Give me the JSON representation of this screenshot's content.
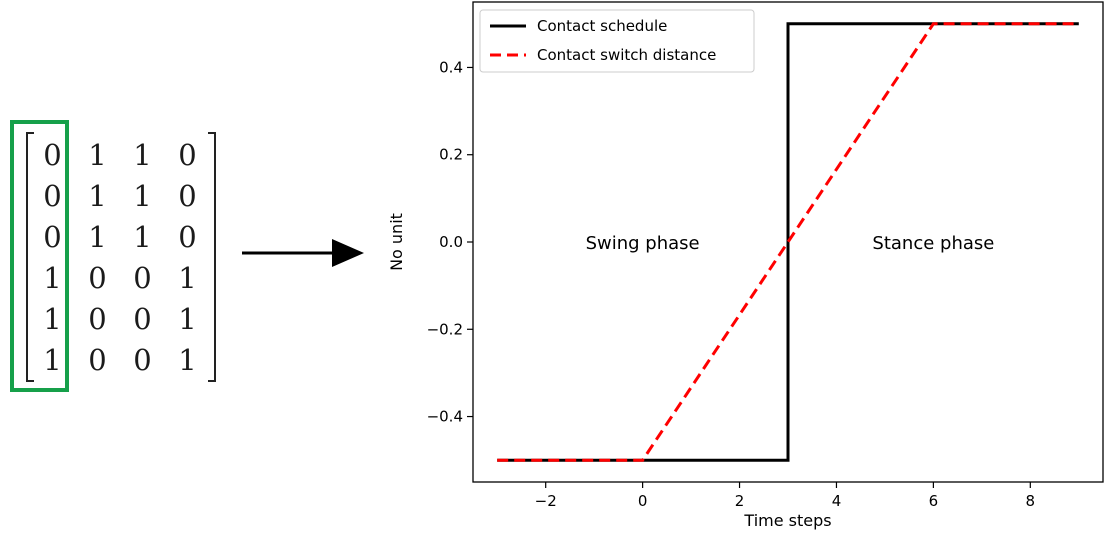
{
  "matrix": {
    "rows": [
      [
        "0",
        "1",
        "1",
        "0"
      ],
      [
        "0",
        "1",
        "1",
        "0"
      ],
      [
        "0",
        "1",
        "1",
        "0"
      ],
      [
        "1",
        "0",
        "0",
        "1"
      ],
      [
        "1",
        "0",
        "0",
        "1"
      ],
      [
        "1",
        "0",
        "0",
        "1"
      ]
    ],
    "highlighted_column": 0,
    "highlight_color": "#16a04a"
  },
  "chart_data": {
    "type": "line",
    "title": "",
    "xlabel": "Time steps",
    "ylabel": "No unit",
    "xlim": [
      -3.5,
      9.5
    ],
    "ylim": [
      -0.55,
      0.55
    ],
    "xticks": [
      -2,
      0,
      2,
      4,
      6,
      8
    ],
    "xtick_labels": [
      "−2",
      "0",
      "2",
      "4",
      "6",
      "8"
    ],
    "yticks": [
      0.4,
      0.2,
      0.0,
      -0.2,
      -0.4
    ],
    "ytick_labels": [
      "0.4",
      "0.2",
      "0.0",
      "−0.2",
      "−0.4"
    ],
    "grid": false,
    "legend_position": "top-left",
    "series": [
      {
        "name": "Contact schedule",
        "color": "#000000",
        "style": "solid",
        "x": [
          -3,
          3,
          3,
          9
        ],
        "y": [
          -0.5,
          -0.5,
          0.5,
          0.5
        ]
      },
      {
        "name": "Contact switch distance",
        "color": "#ff0000",
        "style": "dashed",
        "x": [
          -3,
          0,
          6,
          9
        ],
        "y": [
          -0.5,
          -0.5,
          0.5,
          0.5
        ]
      }
    ],
    "annotations": [
      {
        "text": "Swing phase",
        "x": 0,
        "y": 0.0
      },
      {
        "text": "Stance phase",
        "x": 6,
        "y": 0.0
      }
    ]
  }
}
